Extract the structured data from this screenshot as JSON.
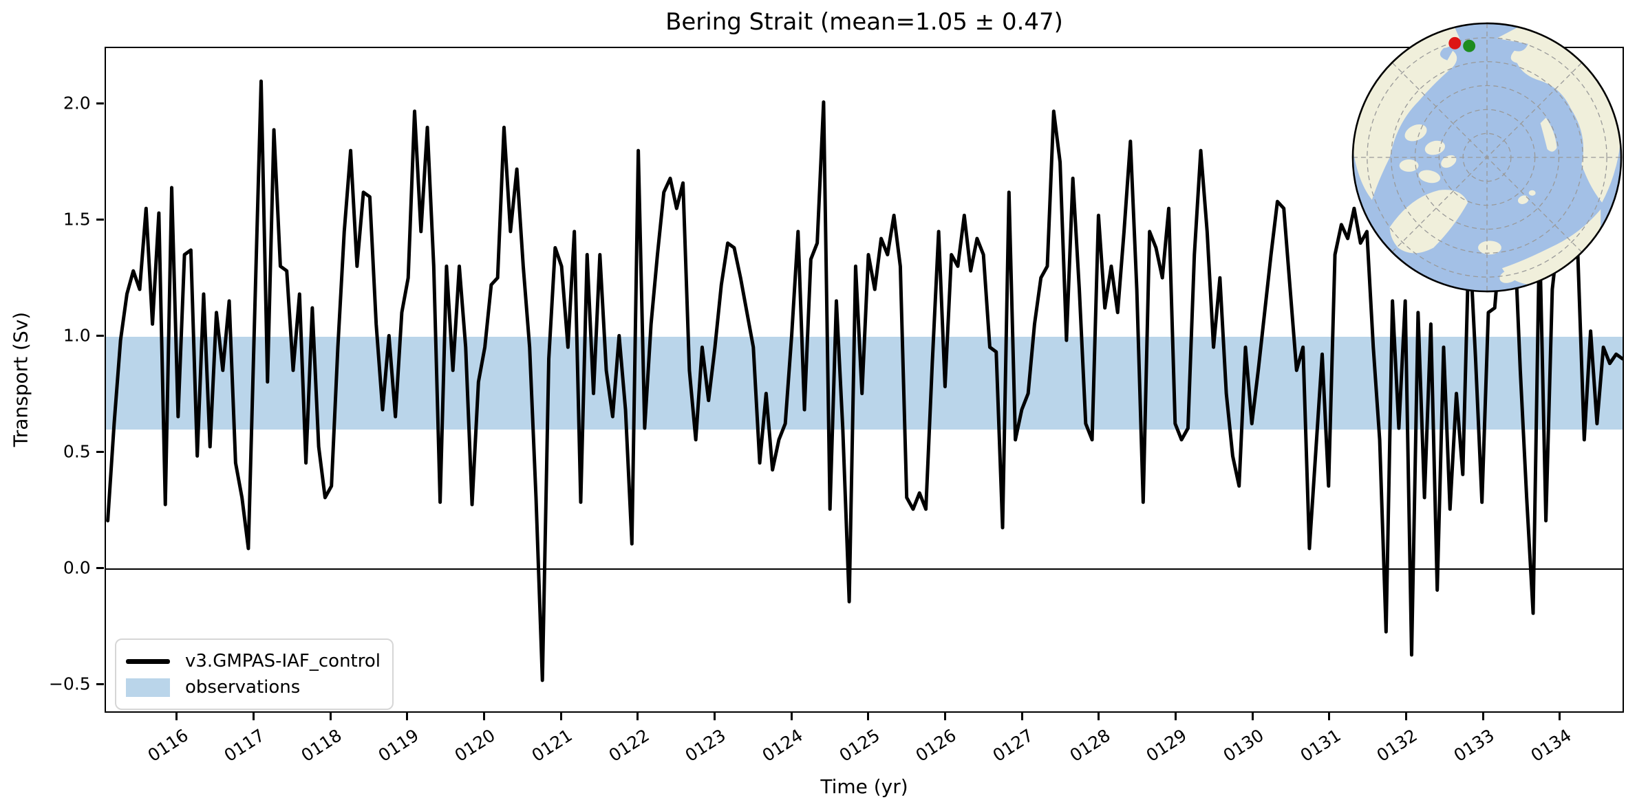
{
  "figure": {
    "title": "Bering Strait (mean=1.05 ± 0.47)"
  },
  "axes": {
    "xlabel": "Time (yr)",
    "ylabel": "Transport (Sv)",
    "x_tick_labels": [
      "0116",
      "0117",
      "0118",
      "0119",
      "0120",
      "0121",
      "0122",
      "0123",
      "0124",
      "0125",
      "0126",
      "0127",
      "0128",
      "0129",
      "0130",
      "0131",
      "0132",
      "0133",
      "0134"
    ],
    "x_tick_values": [
      116,
      117,
      118,
      119,
      120,
      121,
      122,
      123,
      124,
      125,
      126,
      127,
      128,
      129,
      130,
      131,
      132,
      133,
      134
    ],
    "y_tick_labels": [
      "−0.5",
      "0.0",
      "0.5",
      "1.0",
      "1.5",
      "2.0"
    ],
    "y_tick_values": [
      -0.5,
      0.0,
      0.5,
      1.0,
      1.5,
      2.0
    ],
    "xlim": [
      115.06,
      134.833
    ],
    "ylim": [
      -0.623,
      2.243
    ]
  },
  "legend": {
    "entries": [
      {
        "label": "v3.GMPAS-IAF_control",
        "type": "line",
        "color": "#000000"
      },
      {
        "label": "observations",
        "type": "patch",
        "color": "#BAD5EA"
      }
    ]
  },
  "colors": {
    "series_line": "#000000",
    "observations_band": "#BAD5EA",
    "zero_line": "#000000",
    "map_ocean": "#A3C0E6",
    "map_land": "#F0EFDB",
    "map_graticule": "#999999",
    "marker_red": "#DD1515",
    "marker_green": "#1E8C1E"
  },
  "chart_data": {
    "type": "line",
    "title": "Bering Strait (mean=1.05 ± 0.47)",
    "xlabel": "Time (yr)",
    "ylabel": "Transport (Sv)",
    "mean": 1.05,
    "std": 0.47,
    "xlim": [
      115.06,
      134.833
    ],
    "ylim": [
      -0.623,
      2.243
    ],
    "x_ticks": [
      116,
      117,
      118,
      119,
      120,
      121,
      122,
      123,
      124,
      125,
      126,
      127,
      128,
      129,
      130,
      131,
      132,
      133,
      134
    ],
    "zero_line": 0.0,
    "observations_band": {
      "label": "observations",
      "ymin": 0.6,
      "ymax": 1.0,
      "color": "#BAD5EA"
    },
    "series": [
      {
        "name": "v3.GMPAS-IAF_control",
        "color": "#000000",
        "x_start": 115.0833,
        "x_step": 0.0833333,
        "values": [
          0.2,
          0.62,
          0.98,
          1.18,
          1.28,
          1.2,
          1.55,
          1.05,
          1.53,
          0.27,
          1.64,
          0.65,
          1.35,
          1.37,
          0.48,
          1.18,
          0.52,
          1.1,
          0.85,
          1.15,
          0.45,
          0.3,
          0.08,
          1.1,
          2.1,
          0.8,
          1.89,
          1.3,
          1.28,
          0.85,
          1.18,
          0.45,
          1.12,
          0.52,
          0.3,
          0.35,
          0.95,
          1.45,
          1.8,
          1.3,
          1.62,
          1.6,
          1.05,
          0.68,
          1.0,
          0.65,
          1.1,
          1.25,
          1.97,
          1.45,
          1.9,
          1.3,
          0.28,
          1.3,
          0.85,
          1.3,
          0.95,
          0.27,
          0.8,
          0.95,
          1.22,
          1.25,
          1.9,
          1.45,
          1.72,
          1.3,
          0.95,
          0.3,
          -0.49,
          0.9,
          1.38,
          1.3,
          0.95,
          1.45,
          0.28,
          1.35,
          0.75,
          1.35,
          0.85,
          0.65,
          1.0,
          0.68,
          0.1,
          1.8,
          0.6,
          1.05,
          1.35,
          1.62,
          1.68,
          1.55,
          1.66,
          0.85,
          0.55,
          0.95,
          0.72,
          0.95,
          1.22,
          1.4,
          1.38,
          1.25,
          1.1,
          0.95,
          0.45,
          0.75,
          0.42,
          0.55,
          0.62,
          1.0,
          1.45,
          0.68,
          1.33,
          1.4,
          2.01,
          0.25,
          1.15,
          0.6,
          -0.15,
          1.3,
          0.75,
          1.35,
          1.2,
          1.42,
          1.35,
          1.52,
          1.3,
          0.3,
          0.25,
          0.32,
          0.25,
          0.88,
          1.45,
          0.78,
          1.35,
          1.3,
          1.52,
          1.28,
          1.42,
          1.35,
          0.95,
          0.93,
          0.17,
          1.62,
          0.55,
          0.68,
          0.75,
          1.05,
          1.25,
          1.3,
          1.97,
          1.75,
          0.98,
          1.68,
          1.2,
          0.62,
          0.55,
          1.52,
          1.12,
          1.3,
          1.1,
          1.45,
          1.84,
          1.2,
          0.28,
          1.45,
          1.38,
          1.25,
          1.55,
          0.62,
          0.55,
          0.6,
          1.35,
          1.8,
          1.45,
          0.95,
          1.25,
          0.75,
          0.48,
          0.35,
          0.95,
          0.62,
          0.85,
          1.1,
          1.35,
          1.58,
          1.55,
          1.2,
          0.85,
          0.95,
          0.08,
          0.5,
          0.92,
          0.35,
          1.35,
          1.48,
          1.42,
          1.55,
          1.4,
          1.45,
          0.95,
          0.55,
          -0.28,
          1.15,
          0.6,
          1.15,
          -0.38,
          1.1,
          0.3,
          1.05,
          -0.1,
          0.95,
          0.25,
          0.75,
          0.4,
          1.45,
          0.9,
          0.28,
          1.1,
          1.12,
          1.45,
          1.25,
          1.5,
          0.85,
          0.3,
          -0.2,
          1.45,
          0.2,
          1.2,
          1.45,
          1.75,
          1.52,
          1.35,
          0.55,
          1.02,
          0.62,
          0.95,
          0.88,
          0.92,
          0.9
        ]
      }
    ]
  }
}
